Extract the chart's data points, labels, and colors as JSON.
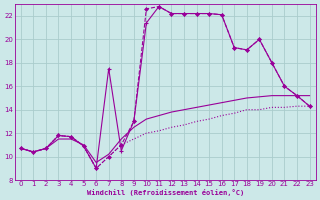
{
  "xlabel": "Windchill (Refroidissement éolien,°C)",
  "bg_color": "#cce8e8",
  "grid_color": "#aacccc",
  "line_color": "#990099",
  "xlim": [
    -0.5,
    23.5
  ],
  "ylim": [
    8,
    23
  ],
  "xticks": [
    0,
    1,
    2,
    3,
    4,
    5,
    6,
    7,
    8,
    9,
    10,
    11,
    12,
    13,
    14,
    15,
    16,
    17,
    18,
    19,
    20,
    21,
    22,
    23
  ],
  "yticks": [
    8,
    10,
    12,
    14,
    16,
    18,
    20,
    22
  ],
  "series_dotted": {
    "x": [
      0,
      1,
      2,
      3,
      4,
      5,
      6,
      7,
      8,
      9,
      10,
      11,
      12,
      13,
      14,
      15,
      16,
      17,
      18,
      19,
      20,
      21,
      22,
      23
    ],
    "y": [
      10.7,
      10.4,
      10.7,
      11.8,
      11.7,
      10.9,
      9.0,
      10.0,
      11.0,
      11.5,
      12.0,
      12.2,
      12.5,
      12.7,
      13.0,
      13.2,
      13.5,
      13.7,
      14.0,
      14.0,
      14.2,
      14.2,
      14.3,
      14.3
    ]
  },
  "series_dashed_diamond": {
    "x": [
      0,
      1,
      2,
      3,
      4,
      5,
      6,
      7,
      8,
      9,
      10,
      11,
      12,
      13,
      14,
      15,
      16,
      17,
      18,
      19,
      20,
      21,
      22,
      23
    ],
    "y": [
      10.7,
      10.4,
      10.7,
      11.8,
      11.7,
      10.9,
      9.0,
      10.0,
      11.0,
      13.0,
      22.6,
      22.8,
      22.2,
      22.2,
      22.2,
      22.2,
      22.1,
      19.3,
      19.1,
      20.0,
      18.0,
      16.0,
      15.2,
      14.3
    ]
  },
  "series_solid_plus": {
    "x": [
      0,
      1,
      2,
      3,
      4,
      5,
      6,
      7,
      8,
      9,
      10,
      11,
      12,
      13,
      14,
      15,
      16,
      17,
      18,
      19,
      20,
      21,
      22,
      23
    ],
    "y": [
      10.7,
      10.4,
      10.7,
      11.8,
      11.7,
      10.9,
      9.0,
      17.5,
      10.5,
      13.0,
      21.4,
      22.8,
      22.2,
      22.2,
      22.2,
      22.2,
      22.1,
      19.3,
      19.1,
      20.0,
      18.0,
      16.0,
      15.2,
      14.3
    ]
  },
  "series_line4": {
    "x": [
      0,
      1,
      2,
      3,
      4,
      5,
      6,
      7,
      8,
      9,
      10,
      11,
      12,
      13,
      14,
      15,
      16,
      17,
      18,
      19,
      20,
      21,
      22,
      23
    ],
    "y": [
      10.7,
      10.4,
      10.7,
      11.5,
      11.5,
      11.0,
      9.5,
      10.2,
      11.5,
      12.5,
      13.2,
      13.5,
      13.8,
      14.0,
      14.2,
      14.4,
      14.6,
      14.8,
      15.0,
      15.1,
      15.2,
      15.2,
      15.2,
      15.2
    ]
  }
}
